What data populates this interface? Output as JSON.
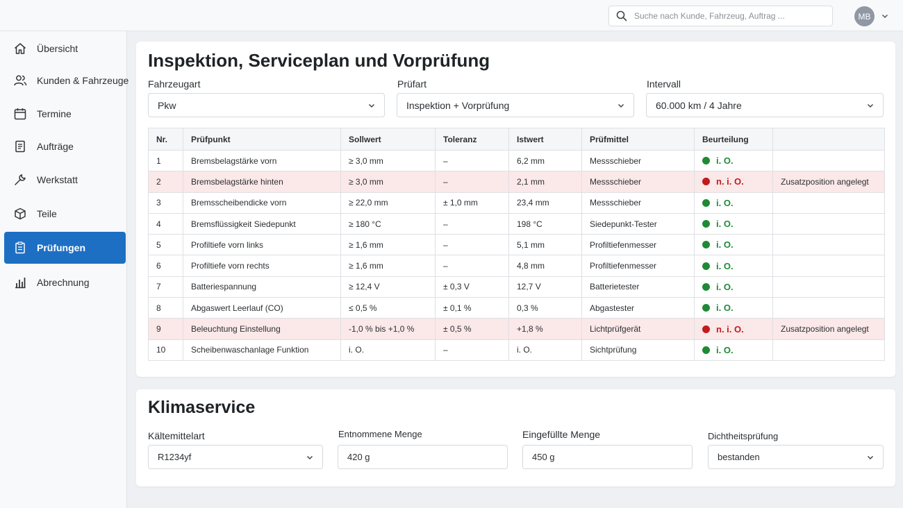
{
  "header": {
    "search_placeholder": "Suche nach Kunde, Fahrzeug, Auftrag ...",
    "avatar_initials": "MB"
  },
  "sidebar": {
    "items": [
      {
        "label": "Übersicht",
        "icon": "home-icon"
      },
      {
        "label": "Kunden & Fahrzeuge",
        "icon": "users-icon"
      },
      {
        "label": "Termine",
        "icon": "calendar-icon"
      },
      {
        "label": "Aufträge",
        "icon": "document-icon"
      },
      {
        "label": "Werkstatt",
        "icon": "wrench-icon"
      },
      {
        "label": "Teile",
        "icon": "box-icon"
      },
      {
        "label": "Prüfungen",
        "icon": "clipboard-icon",
        "active": true
      },
      {
        "label": "Abrechnung",
        "icon": "bar-chart-icon"
      }
    ]
  },
  "inspection": {
    "title": "Inspektion, Serviceplan und Vorprüfung",
    "fields": {
      "vehicle_type": {
        "label": "Fahrzeugart",
        "value": "Pkw"
      },
      "test_type": {
        "label": "Prüfart",
        "value": "Inspektion + Vorprüfung"
      },
      "interval": {
        "label": "Intervall",
        "value": "60.000 km / 4 Jahre"
      }
    },
    "columns": [
      "Nr.",
      "Prüfpunkt",
      "Sollwert",
      "Toleranz",
      "Istwert",
      "Prüfmittel",
      "Beurteilung",
      ""
    ],
    "rows": [
      {
        "nr": "1",
        "point": "Bremsbelagstärke vorn",
        "target": "≥ 3,0 mm",
        "tolerance": "–",
        "actual": "6,2 mm",
        "tool": "Messschieber",
        "verdict": "i. O.",
        "status": "ok",
        "note": ""
      },
      {
        "nr": "2",
        "point": "Bremsbelagstärke hinten",
        "target": "≥ 3,0 mm",
        "tolerance": "–",
        "actual": "2,1 mm",
        "tool": "Messschieber",
        "verdict": "n. i. O.",
        "status": "bad",
        "note": "Zusatzposition angelegt"
      },
      {
        "nr": "3",
        "point": "Bremsscheibendicke vorn",
        "target": "≥ 22,0 mm",
        "tolerance": "± 1,0 mm",
        "actual": "23,4 mm",
        "tool": "Messschieber",
        "verdict": "i. O.",
        "status": "ok",
        "note": ""
      },
      {
        "nr": "4",
        "point": "Bremsflüssigkeit Siedepunkt",
        "target": "≥ 180 °C",
        "tolerance": "–",
        "actual": "198 °C",
        "tool": "Siedepunkt-Tester",
        "verdict": "i. O.",
        "status": "ok",
        "note": ""
      },
      {
        "nr": "5",
        "point": "Profiltiefe vorn links",
        "target": "≥ 1,6 mm",
        "tolerance": "–",
        "actual": "5,1 mm",
        "tool": "Profiltiefenmesser",
        "verdict": "i. O.",
        "status": "ok",
        "note": ""
      },
      {
        "nr": "6",
        "point": "Profiltiefe vorn rechts",
        "target": "≥ 1,6 mm",
        "tolerance": "–",
        "actual": "4,8 mm",
        "tool": "Profiltiefenmesser",
        "verdict": "i. O.",
        "status": "ok",
        "note": ""
      },
      {
        "nr": "7",
        "point": "Batteriespannung",
        "target": "≥ 12,4 V",
        "tolerance": "± 0,3 V",
        "actual": "12,7 V",
        "tool": "Batterietester",
        "verdict": "i. O.",
        "status": "ok",
        "note": ""
      },
      {
        "nr": "8",
        "point": "Abgaswert Leerlauf (CO)",
        "target": "≤ 0,5 %",
        "tolerance": "± 0,1 %",
        "actual": "0,3 %",
        "tool": "Abgastester",
        "verdict": "i. O.",
        "status": "ok",
        "note": ""
      },
      {
        "nr": "9",
        "point": "Beleuchtung Einstellung",
        "target": "-1,0 % bis +1,0 %",
        "tolerance": "± 0,5 %",
        "actual": "+1,8 %",
        "tool": "Lichtprüfgerät",
        "verdict": "n. i. O.",
        "status": "bad",
        "note": "Zusatzposition angelegt"
      },
      {
        "nr": "10",
        "point": "Scheibenwaschanlage Funktion",
        "target": "i. O.",
        "tolerance": "–",
        "actual": "i. O.",
        "tool": "Sichtprüfung",
        "verdict": "i. O.",
        "status": "ok",
        "note": ""
      }
    ]
  },
  "climate": {
    "title": "Klimaservice",
    "refrigerant": {
      "label": "Kältemittelart",
      "value": "R1234yf"
    },
    "extracted": {
      "label": "Entnommene Menge",
      "value": "420 g"
    },
    "filled": {
      "label": "Eingefüllte Menge",
      "value": "450 g"
    },
    "leak_test": {
      "label": "Dichtheitsprüfung",
      "value": "bestanden"
    }
  },
  "colors": {
    "accent": "#1d6fc4",
    "ok": "#1f8a35",
    "bad": "#c21b1b",
    "fail_row": "#fbe8e8"
  }
}
